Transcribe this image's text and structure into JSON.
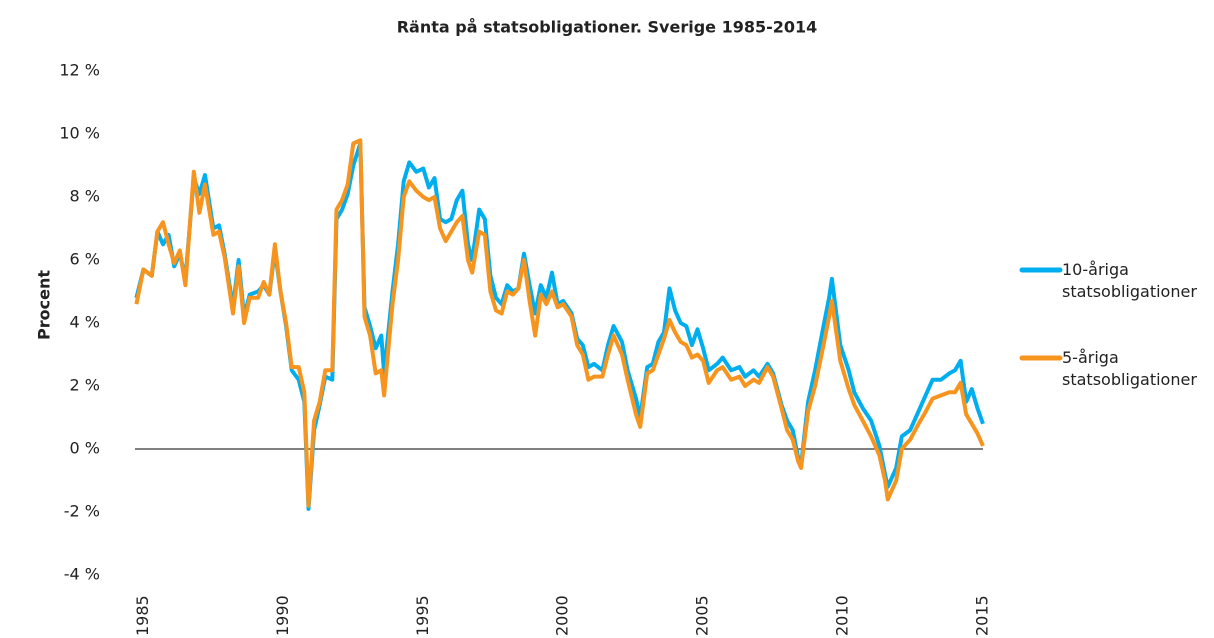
{
  "chart_data": {
    "type": "line",
    "title": "Ränta på statsobligationer. Sverige 1985-2014",
    "y_label": "Procent",
    "xlim": [
      1984.7,
      2015
    ],
    "xticks": [
      1985,
      1990,
      1995,
      2000,
      2005,
      2010,
      2015
    ],
    "ylim": [
      -4,
      12
    ],
    "yticks": [
      {
        "value": -4,
        "label": "-4 %"
      },
      {
        "value": -2,
        "label": "-2 %"
      },
      {
        "value": 0,
        "label": "0 %"
      },
      {
        "value": 2,
        "label": "2 %"
      },
      {
        "value": 4,
        "label": "4 %"
      },
      {
        "value": 6,
        "label": "6 %"
      },
      {
        "value": 8,
        "label": "8 %"
      },
      {
        "value": 10,
        "label": "10 %"
      },
      {
        "value": 12,
        "label": "12 %"
      }
    ],
    "grid": false,
    "zero_line": true,
    "legend": "right",
    "x": [
      1984.75,
      1985.0,
      1985.3,
      1985.5,
      1985.7,
      1985.9,
      1986.1,
      1986.3,
      1986.5,
      1986.8,
      1987.0,
      1987.2,
      1987.5,
      1987.7,
      1987.9,
      1988.2,
      1988.4,
      1988.6,
      1988.8,
      1989.1,
      1989.3,
      1989.5,
      1989.7,
      1989.9,
      1990.1,
      1990.3,
      1990.55,
      1990.75,
      1990.9,
      1991.1,
      1991.3,
      1991.5,
      1991.75,
      1991.9,
      1992.1,
      1992.3,
      1992.5,
      1992.75,
      1992.9,
      1993.1,
      1993.3,
      1993.5,
      1993.6,
      1993.9,
      1994.1,
      1994.3,
      1994.5,
      1994.75,
      1995.0,
      1995.2,
      1995.4,
      1995.6,
      1995.8,
      1996.0,
      1996.2,
      1996.4,
      1996.6,
      1996.75,
      1997.0,
      1997.2,
      1997.4,
      1997.6,
      1997.8,
      1998.0,
      1998.2,
      1998.4,
      1998.6,
      1998.8,
      1999.0,
      1999.2,
      1999.4,
      1999.6,
      1999.8,
      2000.0,
      2000.3,
      2000.5,
      2000.7,
      2000.9,
      2001.1,
      2001.4,
      2001.6,
      2001.8,
      2002.1,
      2002.3,
      2002.6,
      2002.75,
      2003.0,
      2003.2,
      2003.4,
      2003.6,
      2003.8,
      2004.0,
      2004.2,
      2004.4,
      2004.6,
      2004.8,
      2005.0,
      2005.2,
      2005.5,
      2005.7,
      2006.0,
      2006.3,
      2006.5,
      2006.8,
      2007.0,
      2007.3,
      2007.5,
      2007.8,
      2008.0,
      2008.2,
      2008.4,
      2008.5,
      2008.75,
      2009.0,
      2009.3,
      2009.5,
      2009.6,
      2009.9,
      2010.2,
      2010.4,
      2010.7,
      2011.0,
      2011.3,
      2011.5,
      2011.6,
      2011.9,
      2012.1,
      2012.4,
      2012.7,
      2012.9,
      2013.2,
      2013.5,
      2013.8,
      2014.0,
      2014.2,
      2014.4,
      2014.6,
      2014.8,
      2015.0
    ],
    "series": [
      {
        "name": "10-åriga statsobligationer",
        "color": "#00aeef",
        "values": [
          4.8,
          5.7,
          5.5,
          6.9,
          6.5,
          6.8,
          5.8,
          6.2,
          5.4,
          8.6,
          8.1,
          8.7,
          7.0,
          7.1,
          6.2,
          4.5,
          6.0,
          4.2,
          4.9,
          5.0,
          5.2,
          4.9,
          6.3,
          5.0,
          3.9,
          2.5,
          2.2,
          1.5,
          -1.9,
          0.6,
          1.4,
          2.3,
          2.2,
          7.3,
          7.6,
          8.1,
          9.0,
          9.7,
          4.5,
          3.9,
          3.2,
          3.6,
          2.4,
          5.0,
          6.5,
          8.5,
          9.1,
          8.8,
          8.9,
          8.3,
          8.6,
          7.3,
          7.2,
          7.3,
          7.9,
          8.2,
          6.5,
          6.0,
          7.6,
          7.3,
          5.5,
          4.8,
          4.6,
          5.2,
          5.0,
          5.1,
          6.2,
          5.2,
          4.3,
          5.2,
          4.8,
          5.6,
          4.6,
          4.7,
          4.3,
          3.5,
          3.3,
          2.6,
          2.7,
          2.5,
          3.3,
          3.9,
          3.4,
          2.5,
          1.6,
          1.0,
          2.6,
          2.7,
          3.4,
          3.7,
          5.1,
          4.4,
          4.0,
          3.9,
          3.3,
          3.8,
          3.2,
          2.5,
          2.7,
          2.9,
          2.5,
          2.6,
          2.3,
          2.5,
          2.3,
          2.7,
          2.4,
          1.4,
          0.9,
          0.6,
          -0.3,
          -0.5,
          1.5,
          2.5,
          3.9,
          4.8,
          5.4,
          3.3,
          2.5,
          1.8,
          1.3,
          0.9,
          0.1,
          -0.8,
          -1.2,
          -0.6,
          0.4,
          0.6,
          1.2,
          1.6,
          2.2,
          2.2,
          2.4,
          2.5,
          2.8,
          1.5,
          1.9,
          1.3,
          0.8
        ]
      },
      {
        "name": "5-åriga statsobligationer",
        "color": "#f7941d",
        "values": [
          4.6,
          5.7,
          5.5,
          6.9,
          7.2,
          6.5,
          5.9,
          6.3,
          5.2,
          8.8,
          7.5,
          8.4,
          6.8,
          6.9,
          6.1,
          4.3,
          5.8,
          4.0,
          4.8,
          4.8,
          5.3,
          4.9,
          6.5,
          5.0,
          4.0,
          2.6,
          2.6,
          1.8,
          -1.8,
          0.9,
          1.5,
          2.5,
          2.5,
          7.6,
          7.9,
          8.4,
          9.7,
          9.8,
          4.2,
          3.6,
          2.4,
          2.5,
          1.7,
          4.6,
          6.0,
          8.0,
          8.5,
          8.2,
          8.0,
          7.9,
          8.0,
          7.0,
          6.6,
          6.9,
          7.2,
          7.4,
          6.0,
          5.6,
          6.9,
          6.8,
          5.0,
          4.4,
          4.3,
          5.0,
          4.9,
          5.1,
          6.0,
          4.7,
          3.6,
          4.9,
          4.6,
          5.0,
          4.5,
          4.6,
          4.2,
          3.3,
          3.0,
          2.2,
          2.3,
          2.3,
          3.0,
          3.6,
          3.0,
          2.2,
          1.1,
          0.7,
          2.4,
          2.5,
          3.0,
          3.5,
          4.1,
          3.7,
          3.4,
          3.3,
          2.9,
          3.0,
          2.8,
          2.1,
          2.5,
          2.6,
          2.2,
          2.3,
          2.0,
          2.2,
          2.1,
          2.6,
          2.3,
          1.3,
          0.6,
          0.3,
          -0.4,
          -0.6,
          1.2,
          2.0,
          3.3,
          4.2,
          4.7,
          2.8,
          1.9,
          1.4,
          0.9,
          0.4,
          -0.2,
          -1.0,
          -1.6,
          -1.0,
          0.0,
          0.3,
          0.8,
          1.1,
          1.6,
          1.7,
          1.8,
          1.8,
          2.1,
          1.1,
          0.8,
          0.5,
          0.1
        ]
      }
    ]
  }
}
